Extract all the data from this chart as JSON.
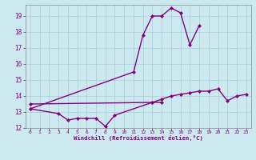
{
  "line1_x": [
    0,
    3,
    4,
    5,
    6,
    7,
    8,
    9,
    13,
    14
  ],
  "line1_y": [
    13.2,
    12.9,
    12.5,
    12.6,
    12.6,
    12.6,
    12.1,
    12.8,
    13.6,
    13.6
  ],
  "line2_x": [
    0,
    13,
    14,
    15,
    16,
    17,
    18,
    19,
    20,
    21,
    22,
    23
  ],
  "line2_y": [
    13.5,
    13.6,
    13.8,
    14.0,
    14.1,
    14.2,
    14.3,
    14.3,
    14.45,
    13.7,
    14.0,
    14.1
  ],
  "line3_x": [
    0,
    11,
    12,
    13,
    14,
    15,
    16,
    17,
    18
  ],
  "line3_y": [
    13.2,
    15.5,
    17.8,
    19.0,
    19.0,
    19.5,
    19.2,
    17.2,
    18.4
  ],
  "xlabel": "Windchill (Refroidissement éolien,°C)",
  "xlim": [
    -0.5,
    23.5
  ],
  "ylim": [
    12,
    19.7
  ],
  "yticks": [
    12,
    13,
    14,
    15,
    16,
    17,
    18,
    19
  ],
  "xticks": [
    0,
    1,
    2,
    3,
    4,
    5,
    6,
    7,
    8,
    9,
    10,
    11,
    12,
    13,
    14,
    15,
    16,
    17,
    18,
    19,
    20,
    21,
    22,
    23
  ],
  "line_color": "#800080",
  "marker": "D",
  "marker_size": 2,
  "bg_color": "#cce9f0",
  "grid_color": "#aaccd8",
  "xlabel_color": "#800080",
  "tick_color": "#800080",
  "line_width": 1.0
}
